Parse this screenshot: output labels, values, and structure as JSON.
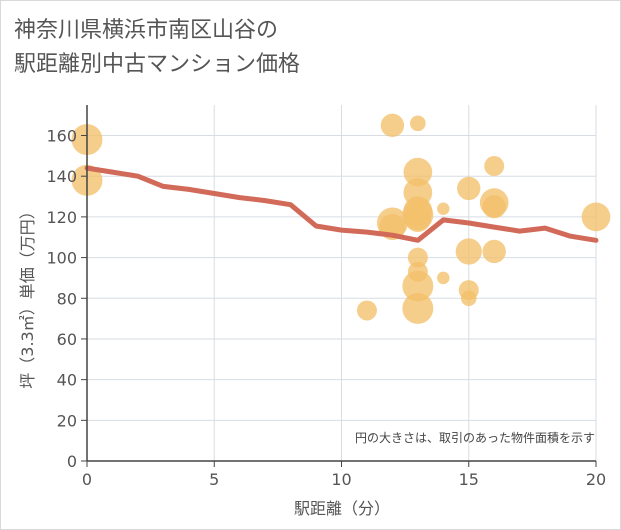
{
  "title_line1": "神奈川県横浜市南区山谷の",
  "title_line2": "駅距離別中古マンション価格",
  "chart_data": {
    "type": "scatter",
    "xlabel": "駅距離（分）",
    "ylabel": "坪（3.3㎡）単価（万円）",
    "xlim": [
      0,
      20
    ],
    "ylim": [
      0,
      175
    ],
    "xticks": [
      "0",
      "5",
      "10",
      "15",
      "20"
    ],
    "yticks": [
      "0",
      "20",
      "40",
      "60",
      "80",
      "100",
      "120",
      "140",
      "160"
    ],
    "note": "円の大きさは、取引のあった物件面積を示す",
    "bubble_color": "#f4c06a",
    "line_color": "#d16a58",
    "grid": true,
    "bubbles": [
      {
        "x": 0,
        "y": 158,
        "size": 6
      },
      {
        "x": 0,
        "y": 138,
        "size": 6
      },
      {
        "x": 11,
        "y": 74,
        "size": 2
      },
      {
        "x": 12,
        "y": 165,
        "size": 3
      },
      {
        "x": 12,
        "y": 117,
        "size": 6
      },
      {
        "x": 12,
        "y": 115,
        "size": 4
      },
      {
        "x": 13,
        "y": 166,
        "size": 1
      },
      {
        "x": 13,
        "y": 142,
        "size": 5
      },
      {
        "x": 13,
        "y": 132,
        "size": 5
      },
      {
        "x": 13,
        "y": 123,
        "size": 5
      },
      {
        "x": 13,
        "y": 121,
        "size": 6
      },
      {
        "x": 13,
        "y": 119,
        "size": 4
      },
      {
        "x": 13,
        "y": 100,
        "size": 2
      },
      {
        "x": 13,
        "y": 93,
        "size": 2
      },
      {
        "x": 13,
        "y": 86,
        "size": 6
      },
      {
        "x": 13,
        "y": 75,
        "size": 6
      },
      {
        "x": 14,
        "y": 124,
        "size": 0.5
      },
      {
        "x": 14,
        "y": 90,
        "size": 0.5
      },
      {
        "x": 15,
        "y": 134,
        "size": 3
      },
      {
        "x": 15,
        "y": 103,
        "size": 4
      },
      {
        "x": 15,
        "y": 84,
        "size": 2
      },
      {
        "x": 15,
        "y": 80,
        "size": 1
      },
      {
        "x": 16,
        "y": 145,
        "size": 2
      },
      {
        "x": 16,
        "y": 127,
        "size": 5
      },
      {
        "x": 16,
        "y": 125,
        "size": 3
      },
      {
        "x": 16,
        "y": 103,
        "size": 3
      },
      {
        "x": 20,
        "y": 120,
        "size": 5
      }
    ],
    "trend": {
      "x": [
        0,
        1,
        2,
        3,
        4,
        5,
        6,
        7,
        8,
        9,
        10,
        11,
        12,
        13,
        14,
        15,
        16,
        17,
        18,
        19,
        20
      ],
      "y": [
        144,
        142,
        140,
        135,
        133.5,
        131.5,
        129.5,
        128,
        126,
        115.5,
        113.5,
        112.5,
        111,
        108.5,
        118.5,
        117,
        115,
        113,
        114.5,
        110.5,
        108.5
      ]
    }
  }
}
